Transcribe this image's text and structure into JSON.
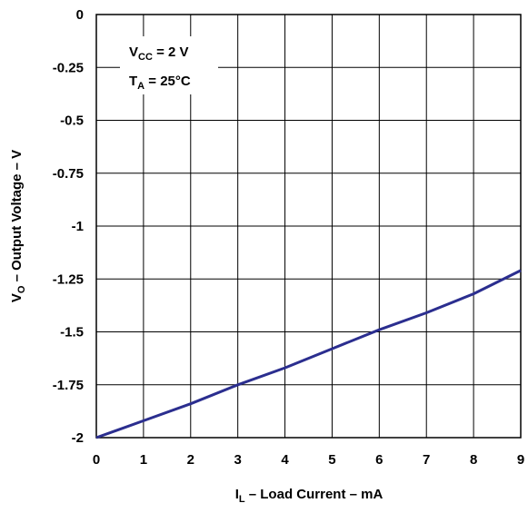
{
  "chart_data": {
    "type": "line",
    "xlabel": {
      "main": "I",
      "sub": "L",
      "rest": " – Load Current – mA"
    },
    "ylabel": {
      "main": "V",
      "sub": "O",
      "rest": " – Output Voltage – V"
    },
    "xlim": [
      0,
      9
    ],
    "ylim": [
      -2,
      0
    ],
    "x_ticks": [
      0,
      1,
      2,
      3,
      4,
      5,
      6,
      7,
      8,
      9
    ],
    "x_tick_labels": [
      "0",
      "1",
      "2",
      "3",
      "4",
      "5",
      "6",
      "7",
      "8",
      "9"
    ],
    "y_ticks": [
      0,
      -0.25,
      -0.5,
      -0.75,
      -1,
      -1.25,
      -1.5,
      -1.75,
      -2
    ],
    "y_tick_labels": [
      "0",
      "-0.25",
      "-0.5",
      "-0.75",
      "-1",
      "-1.25",
      "-1.5",
      "-1.75",
      "-2"
    ],
    "grid": true,
    "series": [
      {
        "color": "#2b2e8f",
        "x": [
          0,
          1,
          2,
          3,
          4,
          5,
          6,
          7,
          8,
          9
        ],
        "y": [
          -2.0,
          -1.92,
          -1.84,
          -1.75,
          -1.67,
          -1.58,
          -1.49,
          -1.41,
          -1.32,
          -1.21
        ]
      }
    ],
    "annotations": [
      {
        "main": "V",
        "sub": "CC",
        "rest": " = 2 V"
      },
      {
        "main": "T",
        "sub": "A",
        "rest": " = 25°C"
      }
    ]
  }
}
